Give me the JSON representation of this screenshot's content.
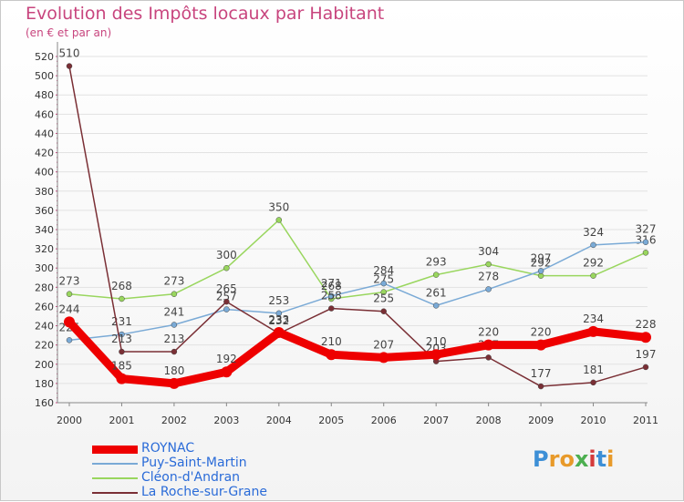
{
  "header": {
    "title": "Evolution des Impôts locaux par Habitant",
    "subtitle": "(en € et par an)"
  },
  "logo": {
    "letters": [
      "P",
      "r",
      "o",
      "x",
      "i",
      "t",
      "i"
    ],
    "colors": [
      "#3d8fd6",
      "#e89a2a",
      "#e89a2a",
      "#4caf50",
      "#d43b3b",
      "#3d8fd6",
      "#e89a2a"
    ]
  },
  "chart_data": {
    "type": "line",
    "title": "Evolution des Impôts locaux par Habitant",
    "subtitle": "(en € et par an)",
    "xlabel": "",
    "ylabel": "",
    "categories": [
      "2000",
      "2001",
      "2002",
      "2003",
      "2004",
      "2005",
      "2006",
      "2007",
      "2008",
      "2009",
      "2010",
      "2011"
    ],
    "ylim": [
      160,
      520
    ],
    "yticks": [
      160,
      180,
      200,
      220,
      240,
      260,
      280,
      300,
      320,
      340,
      360,
      380,
      400,
      420,
      440,
      460,
      480,
      500,
      520
    ],
    "grid": true,
    "legend_position": "bottom-left",
    "series": [
      {
        "name": "Cléon-d'Andran",
        "color": "#99d65e",
        "width": 1.5,
        "values": [
          273,
          268,
          273,
          300,
          350,
          268,
          275,
          293,
          304,
          292,
          292,
          316
        ],
        "labels": [
          "273",
          "268",
          "273",
          "300",
          "350",
          "268",
          "275",
          "293",
          "304",
          "292",
          "292",
          "316"
        ]
      },
      {
        "name": "Puy-Saint-Martin",
        "color": "#7aaad6",
        "width": 1.5,
        "values": [
          225,
          231,
          241,
          257,
          253,
          271,
          284,
          261,
          278,
          297,
          324,
          327
        ],
        "labels": [
          "225",
          "231",
          "241",
          "257",
          "253",
          "271",
          "284",
          "261",
          "278",
          "297",
          "324",
          "327"
        ]
      },
      {
        "name": "La Roche-sur-Grane",
        "color": "#7a2f35",
        "width": 1.5,
        "values": [
          510,
          213,
          213,
          265,
          232,
          258,
          255,
          203,
          207,
          177,
          181,
          197
        ],
        "labels": [
          "510",
          "213",
          "213",
          "265",
          "232",
          "258",
          "255",
          "203",
          "207",
          "177",
          "181",
          "197"
        ]
      },
      {
        "name": "ROYNAC",
        "color": "#ee0000",
        "width": 9,
        "values": [
          244,
          185,
          180,
          192,
          233,
          210,
          207,
          210,
          220,
          220,
          234,
          228
        ],
        "labels": [
          "244",
          "185",
          "180",
          "192",
          "233",
          "210",
          "207",
          "210",
          "220",
          "220",
          "234",
          "228"
        ]
      }
    ],
    "legend": [
      "ROYNAC",
      "Puy-Saint-Martin",
      "Cléon-d'Andran",
      "La Roche-sur-Grane"
    ]
  }
}
